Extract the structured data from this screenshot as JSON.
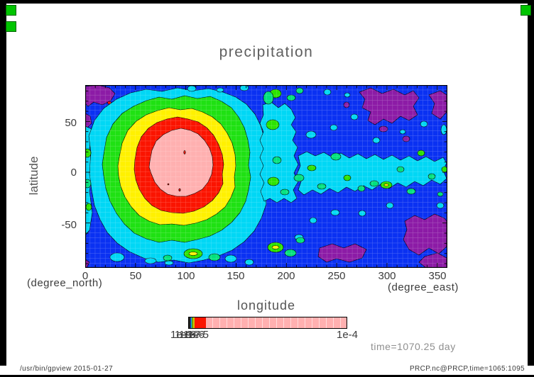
{
  "window": {
    "app": "gpview plot window",
    "marker_color": "#00c400",
    "status_left": "/usr/bin/gpview  2015-01-27",
    "status_right": "PRCP.nc@PRCP,time=1065:1095"
  },
  "chart": {
    "title": "precipitation",
    "xlabel": "longitude",
    "ylabel": "latitude",
    "unit_left": "(degree_north)",
    "unit_right": "(degree_east)",
    "x_ticks": [
      "0",
      "50",
      "100",
      "150",
      "200",
      "250",
      "300",
      "350"
    ],
    "y_ticks": [
      "50",
      "0",
      "-50"
    ],
    "time_label": "time=1070.25 day",
    "colorbar_left_labels": [
      "1e-9",
      "1e-8",
      "1e-7",
      "1e-6",
      "1e-5"
    ],
    "colorbar_right_label": "1e-4"
  },
  "chart_data": {
    "type": "heatmap",
    "subtype": "filled-contour-map",
    "title": "precipitation",
    "xlabel": "longitude",
    "x_unit": "degree_east",
    "ylabel": "latitude",
    "y_unit": "degree_north",
    "xlim": [
      0,
      360
    ],
    "ylim": [
      -90,
      90
    ],
    "x_ticks": [
      0,
      50,
      100,
      150,
      200,
      250,
      300,
      350
    ],
    "y_ticks": [
      -50,
      0,
      50
    ],
    "time_annotation": "time=1070.25 day",
    "colorbar": {
      "orientation": "horizontal",
      "scale": "log",
      "tick_labels": [
        "1e-9",
        "1e-8",
        "1e-7",
        "1e-6",
        "1e-5",
        "1e-4"
      ],
      "band_colors": [
        "#8c1ba6",
        "#0a31f2",
        "#00d7f5",
        "#00e07d",
        "#2ce300",
        "#fff100",
        "#fb1400",
        "#ffb0b0"
      ]
    },
    "features": [
      {
        "description": "broad precipitation maximum (pink core within red ring)",
        "lon_range": [
          20,
          160
        ],
        "lat_range": [
          -55,
          55
        ],
        "value": "approaching 1e-4"
      },
      {
        "description": "concentric contour rings around maximum",
        "lon_range": [
          0,
          180
        ],
        "lat_range": [
          -80,
          80
        ],
        "value": "1e-6 to 5e-5 (yellow, green, cyan bands)"
      },
      {
        "description": "patchy equatorial band of moderate precipitation",
        "lon_range": [
          180,
          360
        ],
        "lat_range": [
          -25,
          25
        ],
        "value": "1e-7 to 1e-5 (cyan and green blobs on blue)"
      },
      {
        "description": "dry zones at high latitudes of eastern hemisphere and corners",
        "lon_range": [
          190,
          360
        ],
        "lat_range": [
          -90,
          -50
        ],
        "value": "below 1e-9 (purple patches)"
      },
      {
        "description": "background",
        "lon_range": [
          0,
          360
        ],
        "lat_range": [
          -90,
          90
        ],
        "value": "1e-9 to 1e-8 (blue)"
      }
    ]
  }
}
